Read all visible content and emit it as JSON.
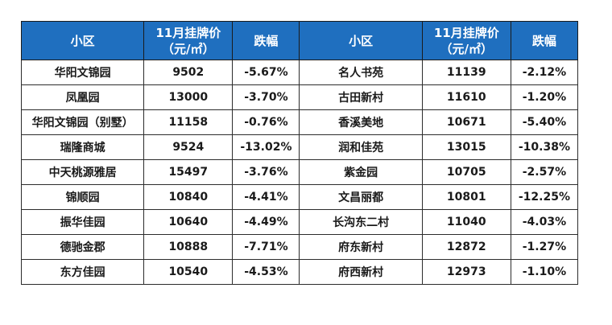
{
  "header": {
    "left_name": "小区",
    "left_price_line1": "11月挂牌价",
    "left_price_line2": "（元/㎡）",
    "left_change": "跌幅",
    "right_name": "小区",
    "right_price_line1": "11月挂牌价",
    "right_price_line2": "（元/㎡）",
    "right_change": "跌幅"
  },
  "rows": [
    {
      "l_name": "华阳文锦园",
      "l_price": "9502",
      "l_change": "-5.67%",
      "r_name": "名人书苑",
      "r_price": "11139",
      "r_change": "-2.12%"
    },
    {
      "l_name": "凤凰园",
      "l_price": "13000",
      "l_change": "-3.70%",
      "r_name": "古田新村",
      "r_price": "11610",
      "r_change": "-1.20%"
    },
    {
      "l_name": "华阳文锦园（别墅）",
      "l_price": "11158",
      "l_change": "-0.76%",
      "r_name": "香溪美地",
      "r_price": "10671",
      "r_change": "-5.40%"
    },
    {
      "l_name": "瑞隆商城",
      "l_price": "9524",
      "l_change": "-13.02%",
      "r_name": "润和佳苑",
      "r_price": "13015",
      "r_change": "-10.38%"
    },
    {
      "l_name": "中天桃源雅居",
      "l_price": "15497",
      "l_change": "-3.76%",
      "r_name": "紫金园",
      "r_price": "10705",
      "r_change": "-2.57%"
    },
    {
      "l_name": "锦顺园",
      "l_price": "10840",
      "l_change": "-4.41%",
      "r_name": "文昌丽都",
      "r_price": "10801",
      "r_change": "-12.25%"
    },
    {
      "l_name": "振华佳园",
      "l_price": "10640",
      "l_change": "-4.49%",
      "r_name": "长沟东二村",
      "r_price": "11040",
      "r_change": "-4.03%"
    },
    {
      "l_name": "德驰金郡",
      "l_price": "10888",
      "l_change": "-7.71%",
      "r_name": "府东新村",
      "r_price": "12872",
      "r_change": "-1.27%"
    },
    {
      "l_name": "东方佳园",
      "l_price": "10540",
      "l_change": "-4.53%",
      "r_name": "府西新村",
      "r_price": "12973",
      "r_change": "-1.10%"
    }
  ]
}
